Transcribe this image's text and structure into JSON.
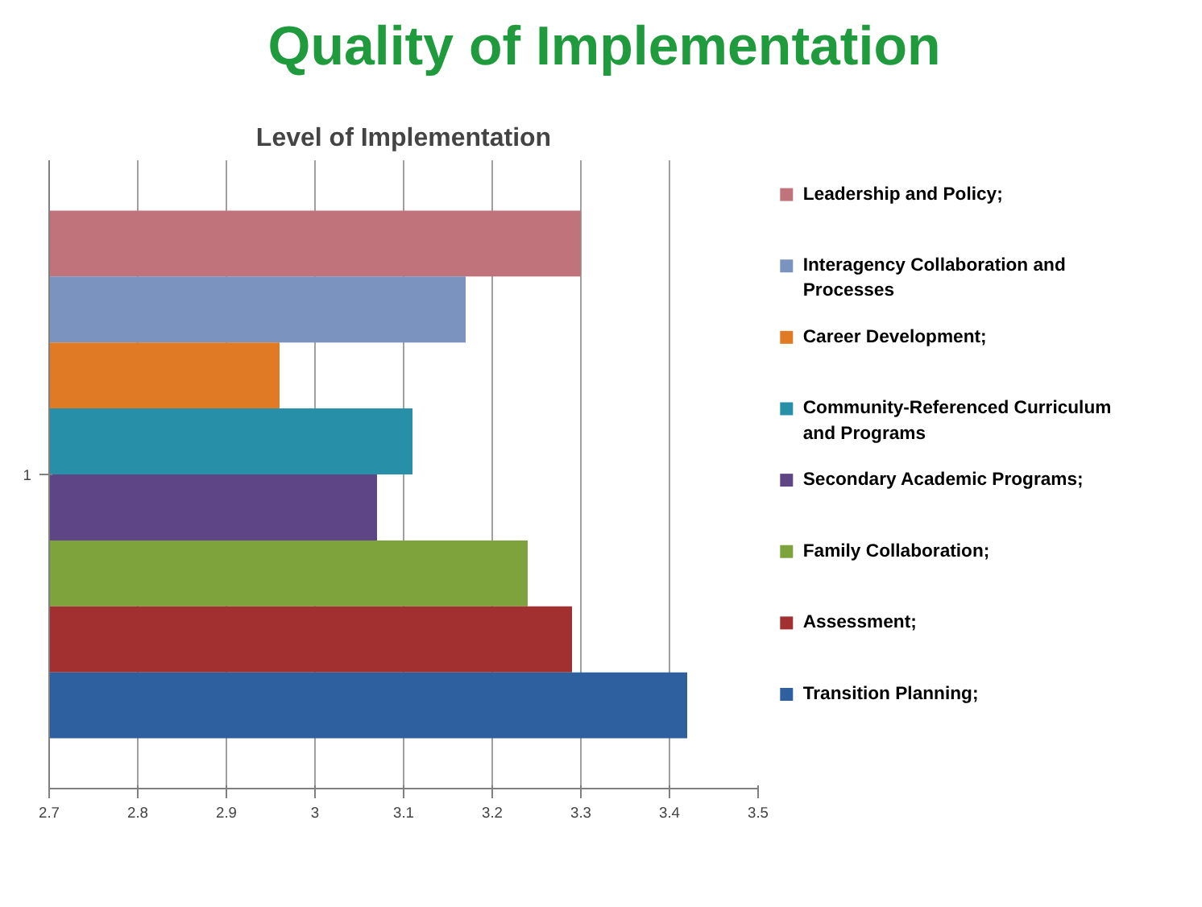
{
  "chart_data": {
    "type": "bar",
    "orientation": "horizontal",
    "title": "Quality of Implementation",
    "subtitle": "Level of Implementation",
    "categories": [
      "1"
    ],
    "series": [
      {
        "name": "Leadership and Policy;",
        "color": "#c0737a",
        "values": [
          3.3
        ]
      },
      {
        "name": "Interagency Collaboration and Processes",
        "color": "#7a94bf",
        "values": [
          3.17
        ]
      },
      {
        "name": "Career Development;",
        "color": "#e07a24",
        "values": [
          2.96
        ]
      },
      {
        "name": "Community-Referenced Curriculum and Programs",
        "color": "#2790a8",
        "values": [
          3.11
        ]
      },
      {
        "name": "Secondary Academic Programs;",
        "color": "#5e4585",
        "values": [
          3.07
        ]
      },
      {
        "name": "Family Collaboration;",
        "color": "#7ea23c",
        "values": [
          3.24
        ]
      },
      {
        "name": "Assessment;",
        "color": "#a33030",
        "values": [
          3.29
        ]
      },
      {
        "name": "Transition Planning;",
        "color": "#2e5f9e",
        "values": [
          3.42
        ]
      }
    ],
    "xlim": [
      2.7,
      3.5
    ],
    "xticks": [
      2.7,
      2.8,
      2.9,
      3,
      3.1,
      3.2,
      3.3,
      3.4,
      3.5
    ],
    "grid": "x",
    "legend": "right"
  }
}
